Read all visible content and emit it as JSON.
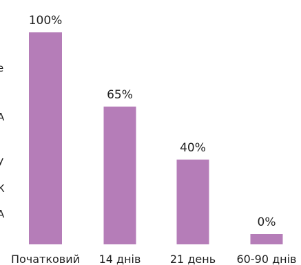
{
  "chart_data": {
    "type": "bar",
    "categories": [
      "Початковий",
      "14 днів",
      "21 день",
      "60-90 днів"
    ],
    "values": [
      100,
      65,
      40,
      0
    ],
    "data_labels": [
      "100%",
      "65%",
      "40%",
      "0%"
    ],
    "ylim": [
      0,
      100
    ],
    "grid": false,
    "legend": "none",
    "bar_color": "#b57db8",
    "text_color": "#1f1f1f"
  },
  "left_edge_fragments": [
    "е",
    "А",
    "У",
    "К",
    "А"
  ]
}
